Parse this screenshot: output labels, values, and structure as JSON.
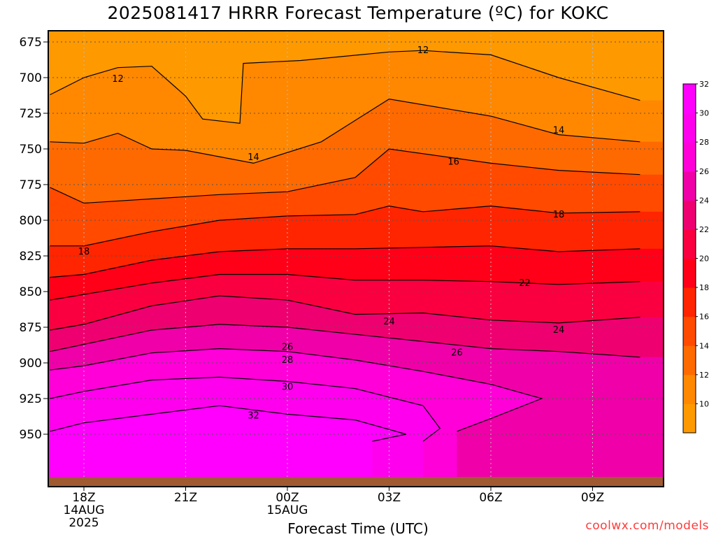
{
  "title": "2025081417 HRRR Forecast Temperature (ºC) for KOKC",
  "watermark": "coolwx.com/models",
  "chart_data": {
    "type": "heatmap",
    "xlabel": "Forecast Time (UTC)",
    "ylabel": "",
    "x_hours": [
      0,
      3,
      6,
      9,
      12,
      15
    ],
    "x_ticks": [
      {
        "hour": 0,
        "lines": [
          "18Z",
          "14AUG",
          "2025"
        ]
      },
      {
        "hour": 3,
        "lines": [
          "21Z"
        ]
      },
      {
        "hour": 6,
        "lines": [
          "00Z",
          "15AUG"
        ]
      },
      {
        "hour": 9,
        "lines": [
          "03Z"
        ]
      },
      {
        "hour": 12,
        "lines": [
          "06Z"
        ]
      },
      {
        "hour": 15,
        "lines": [
          "09Z"
        ]
      }
    ],
    "y_ticks": [
      675,
      700,
      725,
      750,
      775,
      800,
      825,
      850,
      875,
      900,
      925,
      950
    ],
    "colorbar_ticks": [
      10,
      12,
      14,
      16,
      18,
      20,
      22,
      24,
      26,
      28,
      30,
      32
    ],
    "levels": [
      12,
      14,
      16,
      18,
      20,
      22,
      24,
      26,
      28,
      30,
      32
    ],
    "colors": {
      "lt12": "#ff9900",
      "12-14": "#ff8800",
      "14-16": "#ff6a00",
      "16-18": "#ff4a00",
      "18-20": "#ff2500",
      "20-22": "#ff0018",
      "22-24": "#fa0040",
      "24-26": "#ef0070",
      "26-28": "#f000a8",
      "28-30": "#ff00d8",
      "30-32": "#ff00ee",
      "gt32": "#ff00ff",
      "ground": "#a05a32"
    },
    "contours": [
      {
        "level": 12,
        "points": [
          [
            -1,
            712
          ],
          [
            0,
            700
          ],
          [
            1,
            693
          ],
          [
            2,
            692
          ],
          [
            3,
            713
          ],
          [
            3.5,
            729
          ],
          [
            4.6,
            732
          ],
          [
            4.7,
            690
          ],
          [
            6.4,
            688
          ],
          [
            9,
            682
          ],
          [
            10,
            681
          ],
          [
            12,
            684
          ],
          [
            14,
            700
          ],
          [
            16.4,
            716
          ]
        ]
      },
      {
        "level": 14,
        "points": [
          [
            -1,
            745
          ],
          [
            0,
            746
          ],
          [
            1,
            739
          ],
          [
            2,
            750
          ],
          [
            3,
            751
          ],
          [
            5,
            760
          ],
          [
            7,
            745
          ],
          [
            9,
            715
          ],
          [
            12,
            727
          ],
          [
            14,
            740
          ],
          [
            16.4,
            745
          ]
        ]
      },
      {
        "level": 16,
        "points": [
          [
            -1,
            777
          ],
          [
            0,
            788
          ],
          [
            2,
            785
          ],
          [
            4,
            782
          ],
          [
            6,
            780
          ],
          [
            8,
            770
          ],
          [
            9,
            750
          ],
          [
            12,
            760
          ],
          [
            14,
            765
          ],
          [
            16.4,
            768
          ]
        ]
      },
      {
        "level": 18,
        "points": [
          [
            -1,
            818
          ],
          [
            0,
            818
          ],
          [
            2,
            808
          ],
          [
            4,
            800
          ],
          [
            6,
            797
          ],
          [
            8,
            796
          ],
          [
            9,
            790
          ],
          [
            10,
            794
          ],
          [
            12,
            790
          ],
          [
            14,
            795
          ],
          [
            16.4,
            794
          ]
        ]
      },
      {
        "level": 20,
        "points": [
          [
            -1,
            840
          ],
          [
            0,
            838
          ],
          [
            2,
            828
          ],
          [
            4,
            822
          ],
          [
            6,
            820
          ],
          [
            8,
            820
          ],
          [
            10,
            819
          ],
          [
            12,
            818
          ],
          [
            14,
            822
          ],
          [
            16.4,
            820
          ]
        ]
      },
      {
        "level": 22,
        "points": [
          [
            -1,
            856
          ],
          [
            0,
            852
          ],
          [
            2,
            844
          ],
          [
            4,
            838
          ],
          [
            6,
            838
          ],
          [
            8,
            842
          ],
          [
            10,
            842
          ],
          [
            12,
            843
          ],
          [
            14,
            845
          ],
          [
            16.4,
            843
          ]
        ]
      },
      {
        "level": 24,
        "points": [
          [
            -1,
            877
          ],
          [
            0,
            873
          ],
          [
            2,
            860
          ],
          [
            4,
            853
          ],
          [
            6,
            856
          ],
          [
            8,
            866
          ],
          [
            10,
            865
          ],
          [
            12,
            870
          ],
          [
            14,
            872
          ],
          [
            16.4,
            868
          ]
        ]
      },
      {
        "level": 26,
        "points": [
          [
            -1,
            892
          ],
          [
            0,
            887
          ],
          [
            2,
            877
          ],
          [
            4,
            873
          ],
          [
            6,
            875
          ],
          [
            8,
            880
          ],
          [
            10,
            885
          ],
          [
            12,
            890
          ],
          [
            14,
            892
          ],
          [
            16.4,
            896
          ]
        ]
      },
      {
        "level": 28,
        "points": [
          [
            -1,
            905
          ],
          [
            0,
            902
          ],
          [
            2,
            893
          ],
          [
            4,
            890
          ],
          [
            6,
            892
          ],
          [
            8,
            898
          ],
          [
            10,
            906
          ],
          [
            12,
            915
          ],
          [
            13.5,
            925
          ],
          [
            12,
            939
          ],
          [
            11,
            948
          ]
        ]
      },
      {
        "level": 30,
        "points": [
          [
            -1,
            925
          ],
          [
            0,
            920
          ],
          [
            2,
            912
          ],
          [
            4,
            910
          ],
          [
            6,
            913
          ],
          [
            8,
            918
          ],
          [
            10,
            930
          ],
          [
            10.5,
            946
          ],
          [
            10,
            955
          ]
        ]
      },
      {
        "level": 32,
        "points": [
          [
            -1,
            948
          ],
          [
            0,
            942
          ],
          [
            2,
            936
          ],
          [
            4,
            930
          ],
          [
            6,
            936
          ],
          [
            8,
            940
          ],
          [
            9.5,
            950
          ],
          [
            8.5,
            955
          ]
        ]
      }
    ],
    "contour_labels": [
      {
        "text": "12",
        "hour": 1,
        "hpa": 701
      },
      {
        "text": "12",
        "hour": 10,
        "hpa": 681
      },
      {
        "text": "14",
        "hour": 5,
        "hpa": 756
      },
      {
        "text": "14",
        "hour": 14,
        "hpa": 737
      },
      {
        "text": "16",
        "hour": 10.9,
        "hpa": 759
      },
      {
        "text": "18",
        "hour": 0,
        "hpa": 822
      },
      {
        "text": "18",
        "hour": 14,
        "hpa": 796
      },
      {
        "text": "22",
        "hour": 13,
        "hpa": 844
      },
      {
        "text": "24",
        "hour": 9,
        "hpa": 871
      },
      {
        "text": "24",
        "hour": 14,
        "hpa": 877
      },
      {
        "text": "26",
        "hour": 6,
        "hpa": 889
      },
      {
        "text": "26",
        "hour": 11,
        "hpa": 893
      },
      {
        "text": "28",
        "hour": 6,
        "hpa": 898
      },
      {
        "text": "30",
        "hour": 6,
        "hpa": 917
      },
      {
        "text": "32",
        "hour": 5,
        "hpa": 937
      }
    ]
  }
}
